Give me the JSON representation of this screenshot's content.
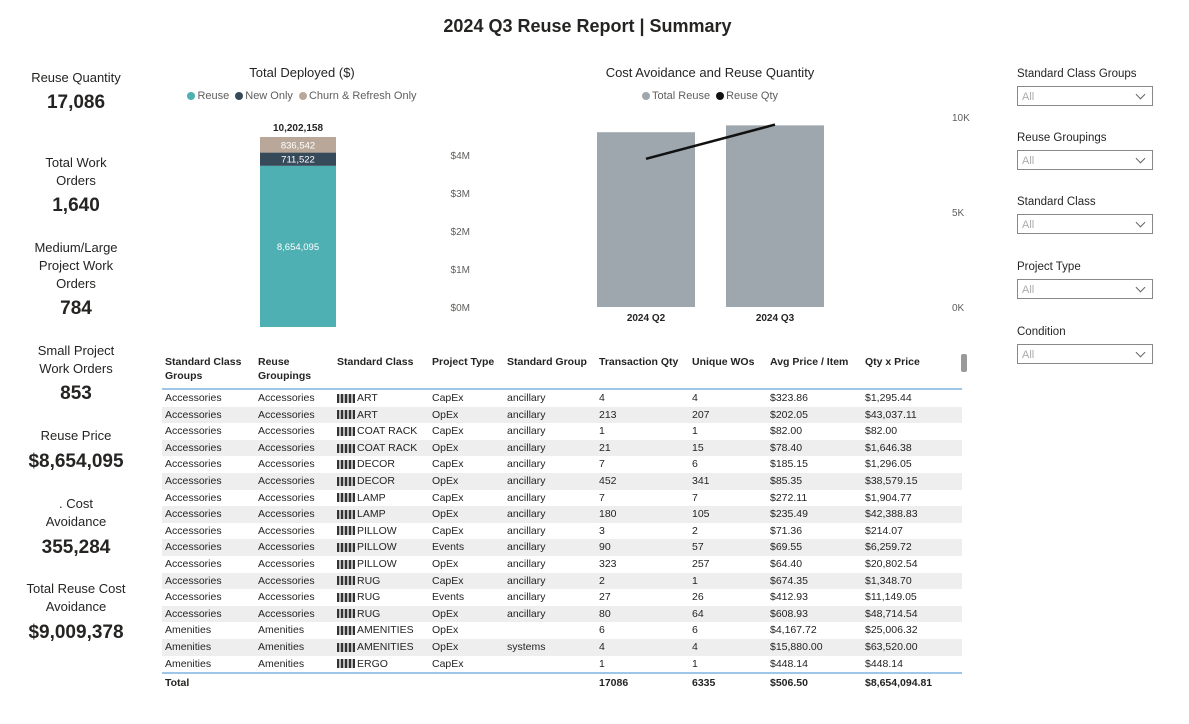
{
  "report_title": "2024 Q3 Reuse Report | Summary",
  "kpis": [
    {
      "label": "Reuse Quantity",
      "value": "17,086"
    },
    {
      "label": "Total Work Orders",
      "value": "1,640"
    },
    {
      "label": "Medium/Large Project Work Orders",
      "value": "784"
    },
    {
      "label": "Small Project Work Orders",
      "value": "853"
    },
    {
      "label": "Reuse Price",
      "value": "$8,654,095"
    },
    {
      "label": ". Cost Avoidance",
      "value": "355,284"
    },
    {
      "label": "Total Reuse Cost Avoidance",
      "value": "$9,009,378"
    }
  ],
  "colors": {
    "reuse": "#4fb0b3",
    "new_only": "#374a5a",
    "churn_refresh": "#b9a899",
    "total_reuse_bar": "#9ea7ae",
    "reuse_qty_line": "#111111",
    "table_rule": "#9ec6e8"
  },
  "chart_data": [
    {
      "type": "bar",
      "stacked": true,
      "title": "Total Deployed ($)",
      "legend": [
        "Reuse",
        "New Only",
        "Churn & Refresh Only"
      ],
      "categories": [
        ""
      ],
      "series": [
        {
          "name": "Reuse",
          "values": [
            8654095
          ],
          "label": "8,654,095"
        },
        {
          "name": "New Only",
          "values": [
            711522
          ],
          "label": "711,522"
        },
        {
          "name": "Churn & Refresh Only",
          "values": [
            836542
          ],
          "label": "836,542"
        }
      ],
      "total": 10202158,
      "total_label": "10,202,158"
    },
    {
      "type": "bar",
      "title": "Cost Avoidance and Reuse Quantity",
      "legend": [
        "Total Reuse",
        "Reuse Qty"
      ],
      "categories": [
        "2024 Q2",
        "2024 Q3"
      ],
      "series": [
        {
          "name": "Total Reuse",
          "type": "bar",
          "values": [
            4600000,
            4780000
          ]
        },
        {
          "name": "Reuse Qty",
          "type": "line",
          "values": [
            7800,
            9600
          ]
        }
      ],
      "y_left_ticks": [
        "$0M",
        "$1M",
        "$2M",
        "$3M",
        "$4M"
      ],
      "y_left_range": [
        0,
        5000000
      ],
      "y_right_ticks": [
        "0K",
        "5K",
        "10K"
      ],
      "y_right_range": [
        0,
        10000
      ]
    }
  ],
  "table": {
    "columns": [
      "Standard Class Groups",
      "Reuse Groupings",
      "Standard Class",
      "Project Type",
      "Standard Group",
      "Transaction Qty",
      "Unique WOs",
      "Avg Price / Item",
      "Qty x Price"
    ],
    "rows": [
      [
        "Accessories",
        "Accessories",
        "ART",
        "CapEx",
        "ancillary",
        "4",
        "4",
        "$323.86",
        "$1,295.44"
      ],
      [
        "Accessories",
        "Accessories",
        "ART",
        "OpEx",
        "ancillary",
        "213",
        "207",
        "$202.05",
        "$43,037.11"
      ],
      [
        "Accessories",
        "Accessories",
        "COAT RACK",
        "CapEx",
        "ancillary",
        "1",
        "1",
        "$82.00",
        "$82.00"
      ],
      [
        "Accessories",
        "Accessories",
        "COAT RACK",
        "OpEx",
        "ancillary",
        "21",
        "15",
        "$78.40",
        "$1,646.38"
      ],
      [
        "Accessories",
        "Accessories",
        "DECOR",
        "CapEx",
        "ancillary",
        "7",
        "6",
        "$185.15",
        "$1,296.05"
      ],
      [
        "Accessories",
        "Accessories",
        "DECOR",
        "OpEx",
        "ancillary",
        "452",
        "341",
        "$85.35",
        "$38,579.15"
      ],
      [
        "Accessories",
        "Accessories",
        "LAMP",
        "CapEx",
        "ancillary",
        "7",
        "7",
        "$272.11",
        "$1,904.77"
      ],
      [
        "Accessories",
        "Accessories",
        "LAMP",
        "OpEx",
        "ancillary",
        "180",
        "105",
        "$235.49",
        "$42,388.83"
      ],
      [
        "Accessories",
        "Accessories",
        "PILLOW",
        "CapEx",
        "ancillary",
        "3",
        "2",
        "$71.36",
        "$214.07"
      ],
      [
        "Accessories",
        "Accessories",
        "PILLOW",
        "Events",
        "ancillary",
        "90",
        "57",
        "$69.55",
        "$6,259.72"
      ],
      [
        "Accessories",
        "Accessories",
        "PILLOW",
        "OpEx",
        "ancillary",
        "323",
        "257",
        "$64.40",
        "$20,802.54"
      ],
      [
        "Accessories",
        "Accessories",
        "RUG",
        "CapEx",
        "ancillary",
        "2",
        "1",
        "$674.35",
        "$1,348.70"
      ],
      [
        "Accessories",
        "Accessories",
        "RUG",
        "Events",
        "ancillary",
        "27",
        "26",
        "$412.93",
        "$11,149.05"
      ],
      [
        "Accessories",
        "Accessories",
        "RUG",
        "OpEx",
        "ancillary",
        "80",
        "64",
        "$608.93",
        "$48,714.54"
      ],
      [
        "Amenities",
        "Amenities",
        "AMENITIES",
        "OpEx",
        "",
        "6",
        "6",
        "$4,167.72",
        "$25,006.32"
      ],
      [
        "Amenities",
        "Amenities",
        "AMENITIES",
        "OpEx",
        "systems",
        "4",
        "4",
        "$15,880.00",
        "$63,520.00"
      ],
      [
        "Amenities",
        "Amenities",
        "ERGO",
        "CapEx",
        "",
        "1",
        "1",
        "$448.14",
        "$448.14"
      ]
    ],
    "total": [
      "Total",
      "",
      "",
      "",
      "",
      "17086",
      "6335",
      "$506.50",
      "$8,654,094.81"
    ]
  },
  "slicers": [
    {
      "label": "Standard Class Groups",
      "value": "All"
    },
    {
      "label": "Reuse Groupings",
      "value": "All"
    },
    {
      "label": "Standard Class",
      "value": "All"
    },
    {
      "label": "Project Type",
      "value": "All"
    },
    {
      "label": "Condition",
      "value": "All"
    }
  ]
}
